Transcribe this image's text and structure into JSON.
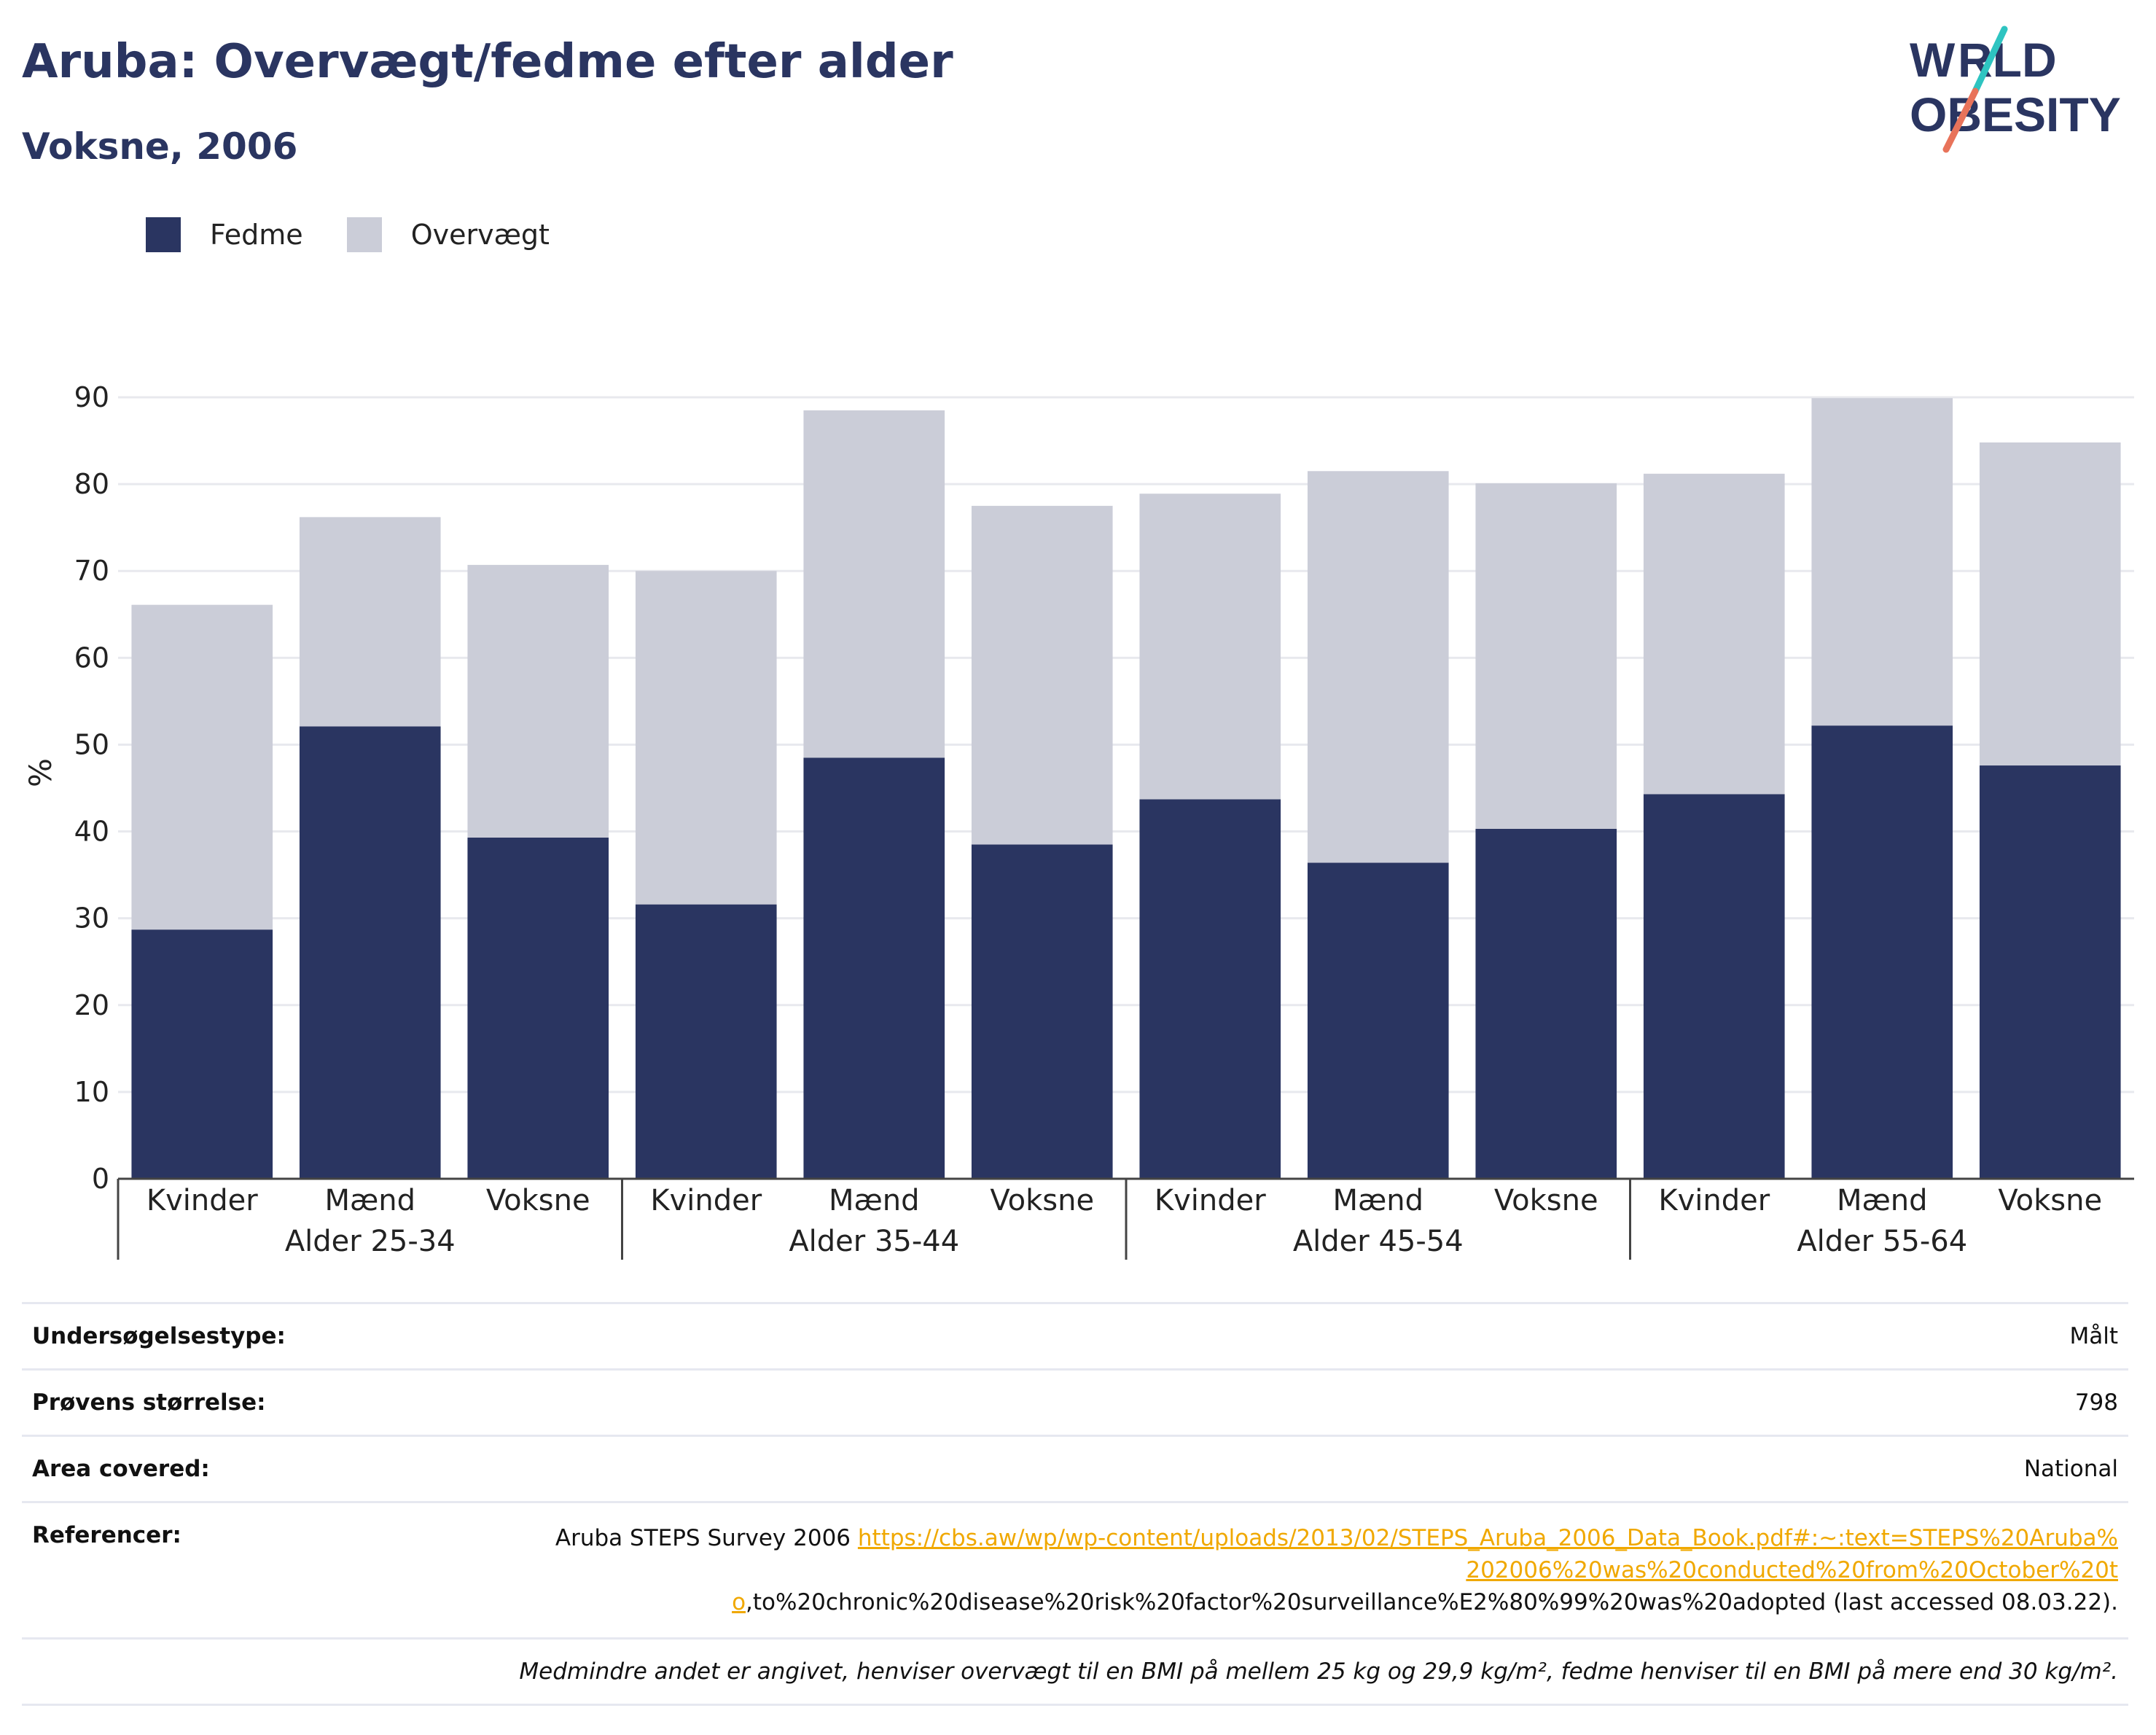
{
  "header": {
    "title": "Aruba: Overvægt/fedme efter alder",
    "subtitle": "Voksne, 2006"
  },
  "logo": {
    "line1": "WORLD",
    "line2": "OBESITY"
  },
  "colors": {
    "fedme": "#2a3561",
    "overvaegt": "#cbcdd8",
    "accent_teal": "#2ec4c1",
    "accent_coral": "#e8735a"
  },
  "chart_data": {
    "type": "bar",
    "stacked": true,
    "ylabel": "%",
    "ylim": [
      0,
      90
    ],
    "yticks": [
      0,
      10,
      20,
      30,
      40,
      50,
      60,
      70,
      80,
      90
    ],
    "grid": true,
    "legend_position": "top-left",
    "groups": [
      {
        "label": "Alder 25-34",
        "categories": [
          "Kvinder",
          "Mænd",
          "Voksne"
        ]
      },
      {
        "label": "Alder 35-44",
        "categories": [
          "Kvinder",
          "Mænd",
          "Voksne"
        ]
      },
      {
        "label": "Alder 45-54",
        "categories": [
          "Kvinder",
          "Mænd",
          "Voksne"
        ]
      },
      {
        "label": "Alder 55-64",
        "categories": [
          "Kvinder",
          "Mænd",
          "Voksne"
        ]
      }
    ],
    "series": [
      {
        "name": "Fedme",
        "values": [
          28.7,
          52.1,
          39.3,
          31.6,
          48.5,
          38.5,
          43.7,
          36.4,
          40.3,
          44.3,
          52.2,
          47.6
        ]
      },
      {
        "name": "Overvægt",
        "values": [
          37.4,
          24.1,
          31.4,
          38.4,
          40.0,
          39.0,
          35.2,
          45.1,
          39.8,
          36.9,
          37.7,
          37.2
        ]
      }
    ]
  },
  "info": {
    "survey_type": {
      "label": "Undersøgelsestype:",
      "value": "Målt"
    },
    "sample_size": {
      "label": "Prøvens størrelse:",
      "value": "798"
    },
    "area": {
      "label": "Area covered:",
      "value": "National"
    },
    "references": {
      "label": "Referencer:",
      "prefix": "Aruba STEPS Survey 2006 ",
      "link": "https://cbs.aw/wp/wp-content/uploads/2013/02/STEPS_Aruba_2006_Data_Book.pdf#:~:text=STEPS%20Aruba%202006%20was%20conducted%20from%20October%20to",
      "suffix": ",to%20chronic%20disease%20risk%20factor%20surveillance%E2%80%99%20was%20adopted (last accessed 08.03.22)."
    },
    "note": "Medmindre andet er angivet, henviser overvægt til en BMI på mellem 25 kg og 29,9 kg/m², fedme henviser til en BMI på mere end 30 kg/m²."
  }
}
